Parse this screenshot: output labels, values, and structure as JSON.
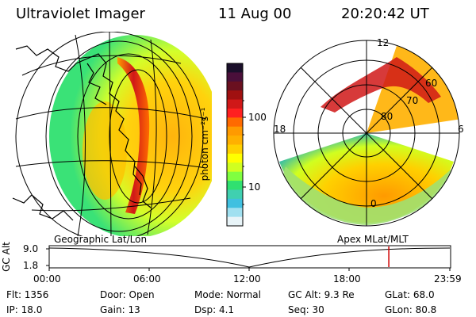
{
  "header": {
    "instrument": "Ultraviolet Imager",
    "date": "11 Aug 00",
    "time": "20:20:42 UT"
  },
  "colorbar": {
    "unit_label": "photon cm⁻²s⁻¹",
    "tick_labels": [
      "100",
      "10"
    ],
    "colors": [
      "#1a0f2a",
      "#4a0f3a",
      "#6a1020",
      "#a01010",
      "#d01818",
      "#ff2020",
      "#ff6a00",
      "#ff9a00",
      "#ffb000",
      "#ffd000",
      "#ffff00",
      "#d0ff20",
      "#80ff40",
      "#30e070",
      "#40d0b0",
      "#40c0e0",
      "#a0e0f0",
      "#e8f4f8"
    ]
  },
  "panels": {
    "left_label": "Geographic Lat/Lon",
    "right_label": "Apex MLat/MLT"
  },
  "polar": {
    "mlt_labels": [
      "12",
      "18",
      "6",
      "0"
    ],
    "lat_labels": [
      "60",
      "70",
      "80"
    ]
  },
  "timeline": {
    "ylabel": "GC Alt",
    "y_ticks": [
      "9.0",
      "1.8"
    ],
    "x_ticks": [
      "00:00",
      "06:00",
      "12:00",
      "18:00",
      "23:59"
    ],
    "marker_time": "20:20:42",
    "marker_color": "#d00000"
  },
  "info": {
    "row1": [
      "Flt:  1356",
      "Door:  Open",
      "Mode:  Normal",
      "GC Alt:  9.3 Re",
      "GLat:  68.0"
    ],
    "row2": [
      "IP:  18.0",
      "Gain:  13",
      "Dsp:      4.1",
      "Seq:  30",
      "GLon:  80.8"
    ]
  }
}
